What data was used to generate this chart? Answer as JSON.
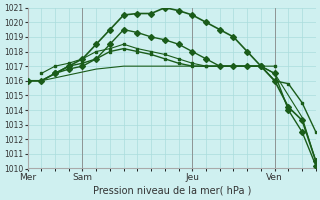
{
  "title": "Pression niveau de la mer( hPa )",
  "bg_color": "#cff0f0",
  "grid_color": "#aadddd",
  "line_color": "#1a5c1a",
  "ylim": [
    1010,
    1021
  ],
  "yticks": [
    1010,
    1011,
    1012,
    1013,
    1014,
    1015,
    1016,
    1017,
    1018,
    1019,
    1020,
    1021
  ],
  "day_labels": [
    "Mer",
    "Sam",
    "Jeu",
    "Ven"
  ],
  "day_positions": [
    0,
    4,
    12,
    18
  ],
  "total_steps": 22,
  "series": [
    {
      "x": [
        0,
        1,
        2,
        3,
        4,
        5,
        6,
        7,
        8,
        9,
        10,
        11,
        12,
        13,
        14,
        15,
        16,
        17,
        18,
        19,
        20,
        21
      ],
      "y": [
        1016.0,
        1016.0,
        1016.5,
        1017.0,
        1017.5,
        1018.5,
        1019.5,
        1020.5,
        1020.6,
        1020.6,
        1021.0,
        1020.8,
        1020.5,
        1020.0,
        1019.5,
        1019.0,
        1018.0,
        1017.0,
        1016.0,
        1014.2,
        1013.3,
        1010.5
      ],
      "marker": "D",
      "markersize": 3,
      "lw": 1.2
    },
    {
      "x": [
        0,
        1,
        2,
        3,
        4,
        5,
        6,
        7,
        8,
        9,
        10,
        11,
        12,
        13,
        14,
        15,
        16,
        17,
        18,
        19,
        20,
        21
      ],
      "y": [
        1016.0,
        1016.0,
        1016.5,
        1017.0,
        1017.2,
        1017.5,
        1018.0,
        1018.2,
        1018.0,
        1017.8,
        1017.5,
        1017.2,
        1017.0,
        1017.0,
        1017.0,
        1017.0,
        1017.0,
        1017.0,
        1016.0,
        1015.8,
        1014.5,
        1012.5
      ],
      "marker": "s",
      "markersize": 2,
      "lw": 1.0
    },
    {
      "x": [
        1,
        2,
        3,
        4,
        5,
        6,
        7,
        8,
        9,
        10,
        11,
        12,
        13,
        14,
        15,
        16,
        17,
        18
      ],
      "y": [
        1016.5,
        1017.0,
        1017.2,
        1017.5,
        1018.0,
        1018.2,
        1018.5,
        1018.2,
        1018.0,
        1017.8,
        1017.5,
        1017.2,
        1017.0,
        1017.0,
        1017.0,
        1017.0,
        1017.0,
        1017.0
      ],
      "marker": "s",
      "markersize": 2,
      "lw": 0.8
    },
    {
      "x": [
        2,
        3,
        4,
        5,
        6,
        7,
        8,
        9,
        10,
        11,
        12,
        13,
        14,
        15,
        16,
        17,
        18,
        19,
        20,
        21
      ],
      "y": [
        1016.5,
        1016.8,
        1017.0,
        1017.5,
        1018.5,
        1019.5,
        1019.3,
        1019.0,
        1018.8,
        1018.5,
        1018.0,
        1017.5,
        1017.0,
        1017.0,
        1017.0,
        1017.0,
        1016.5,
        1014.0,
        1012.5,
        1010.2
      ],
      "marker": "D",
      "markersize": 3,
      "lw": 1.0
    },
    {
      "x": [
        0,
        1,
        2,
        3,
        4,
        5,
        6,
        7,
        8,
        9,
        10,
        11,
        12,
        13,
        14,
        15,
        16,
        17,
        18,
        19,
        20,
        21
      ],
      "y": [
        1016.0,
        1016.0,
        1016.2,
        1016.4,
        1016.6,
        1016.8,
        1016.9,
        1017.0,
        1017.0,
        1017.0,
        1017.0,
        1017.0,
        1017.0,
        1017.0,
        1017.0,
        1017.0,
        1017.0,
        1017.0,
        1016.5,
        1015.0,
        1013.5,
        1010.5
      ],
      "marker": null,
      "markersize": 0,
      "lw": 0.8
    }
  ]
}
